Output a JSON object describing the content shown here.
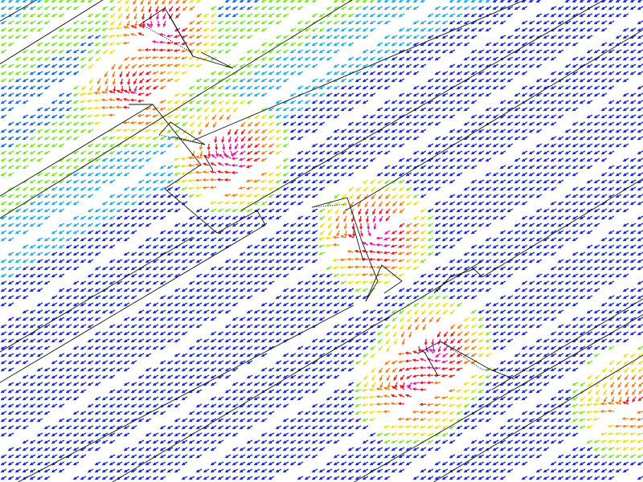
{
  "figure": {
    "kind": "vector-field",
    "description_visible": false
  },
  "palette": {
    "low_3": "#1f2fd6",
    "low_2": "#1e6fe0",
    "low_1": "#2aaee8",
    "cyan": "#22d2e2",
    "mid": "#7ee832",
    "yellow": "#e8e320",
    "orange": "#f08020",
    "red": "#e81c28",
    "magenta": "#e01ca8"
  },
  "icons": {
    "arrow": "arrow-glyph"
  }
}
